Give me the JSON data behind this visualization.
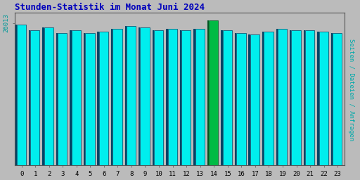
{
  "title": "Stunden-Statistik im Monat Juni 2024",
  "title_color": "#0000BB",
  "title_fontsize": 9,
  "ylabel": "Seiten / Dateien / Anfragen",
  "ylabel_color": "#00AAAA",
  "ylabel_fontsize": 6.5,
  "xlabel_labels": [
    "0",
    "1",
    "2",
    "3",
    "4",
    "5",
    "6",
    "7",
    "8",
    "9",
    "10",
    "11",
    "12",
    "13",
    "14",
    "15",
    "16",
    "17",
    "18",
    "19",
    "20",
    "21",
    "22",
    "23"
  ],
  "ytick_label": "26013",
  "ytick_color": "#009999",
  "background_color": "#BBBBBB",
  "plot_bg_color": "#BBBBBB",
  "bar_face_color": "#00EEEE",
  "bar_dark_color": "#004466",
  "bar14_face_color": "#00BB44",
  "bar14_dark_color": "#005522",
  "values": [
    97,
    93,
    95,
    91,
    93,
    91,
    92,
    94,
    96,
    95,
    93,
    94,
    93,
    94,
    100,
    93,
    91,
    90,
    92,
    94,
    93,
    93,
    92,
    91
  ],
  "ylim": [
    0,
    105
  ],
  "figsize": [
    5.12,
    2.56
  ],
  "dpi": 100
}
